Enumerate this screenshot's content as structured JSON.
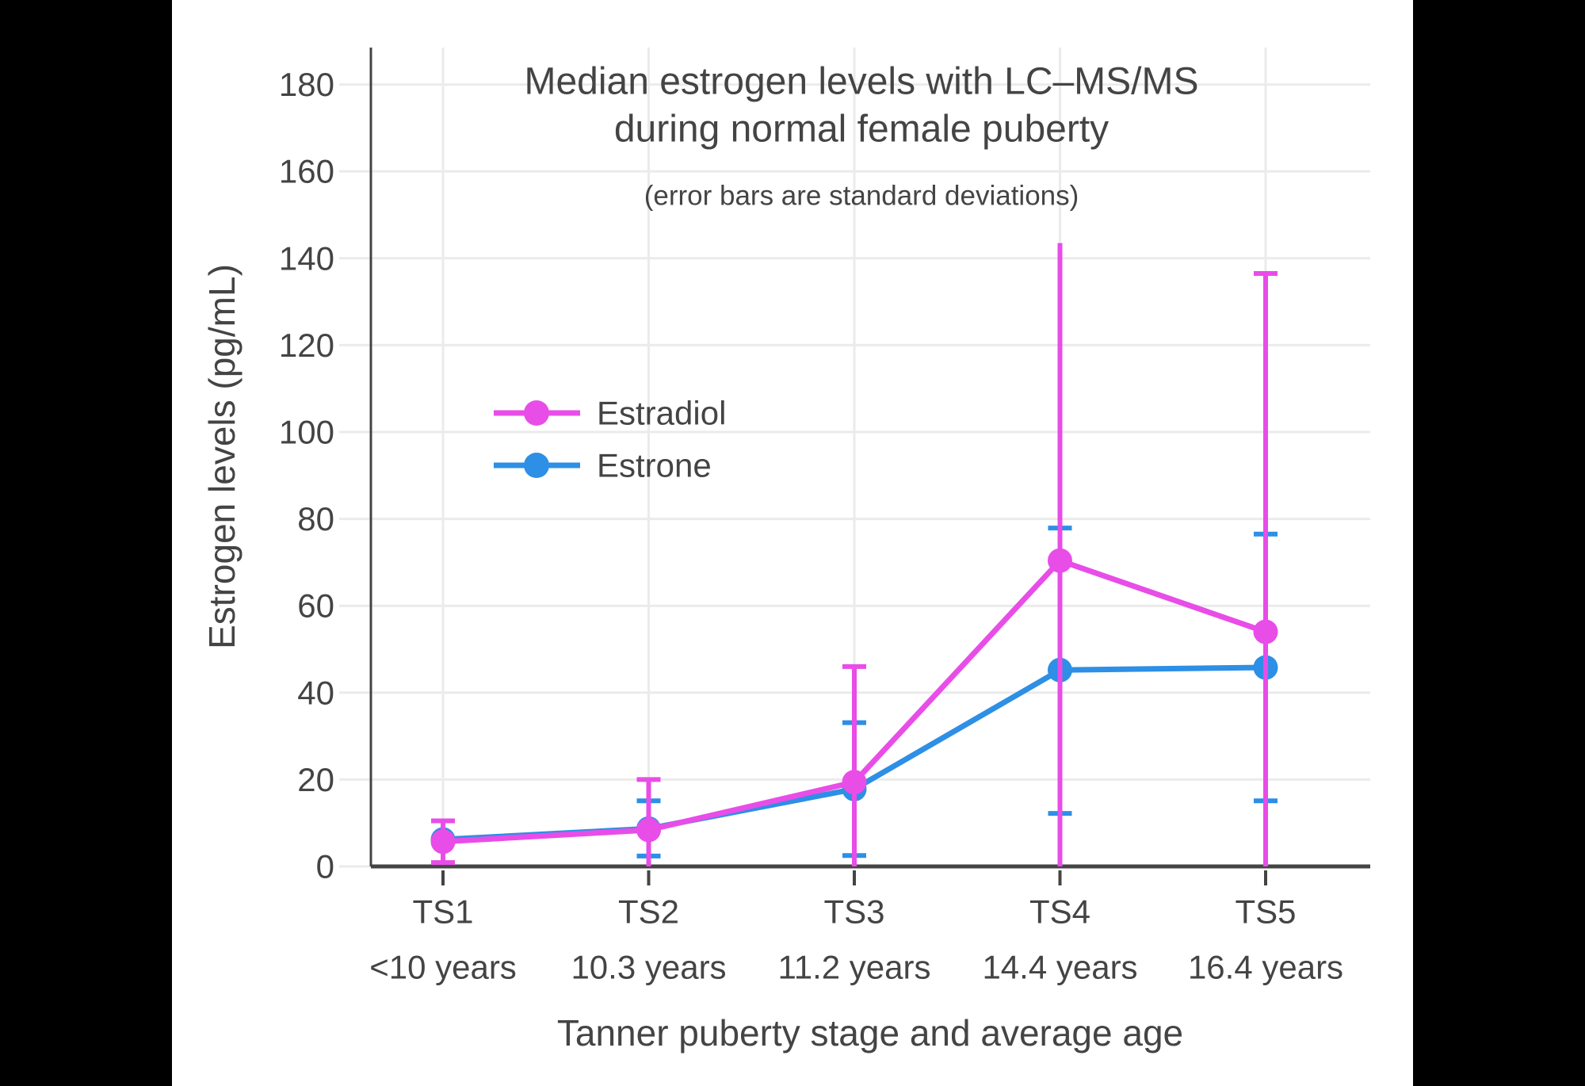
{
  "page": {
    "background": "#000000",
    "panel_background": "#ffffff",
    "text_color": "#444444",
    "grid_color": "#ebebeb",
    "axis_color": "#444444"
  },
  "chart_data": {
    "type": "line",
    "title_line1": "Median estrogen levels with LC–MS/MS",
    "title_line2": "during normal female puberty",
    "subtitle": "(error bars are standard deviations)",
    "xlabel": "Tanner puberty stage and average age",
    "ylabel": "Estrogen levels (pg/mL)",
    "categories": [
      "TS1",
      "TS2",
      "TS3",
      "TS4",
      "TS5"
    ],
    "category_ages": [
      "<10 years",
      "10.3 years",
      "11.2 years",
      "14.4 years",
      "16.4 years"
    ],
    "y_ticks": [
      0,
      20,
      40,
      60,
      80,
      100,
      120,
      140,
      160,
      180
    ],
    "ylim": [
      0,
      188.5
    ],
    "grid": true,
    "legend_position": "inside-upper-left",
    "error_bar_meaning": "standard deviations",
    "series": [
      {
        "name": "Estrone",
        "color": "#2d8fe5",
        "values": [
          6.2,
          8.7,
          17.8,
          45.2,
          45.8
        ],
        "err_hi": [
          null,
          15.1,
          33.1,
          77.9,
          76.5
        ],
        "err_lo": [
          null,
          2.4,
          2.5,
          12.2,
          15.1
        ],
        "cap_hi": [
          false,
          true,
          true,
          true,
          true
        ],
        "cap_lo": [
          false,
          true,
          true,
          true,
          true
        ]
      },
      {
        "name": "Estradiol",
        "color": "#e84de8",
        "values": [
          5.7,
          8.4,
          19.4,
          70.4,
          54.0
        ],
        "err_hi": [
          10.5,
          20.0,
          46.0,
          143.5,
          136.5
        ],
        "err_lo": [
          0.9,
          0,
          0,
          0,
          0
        ],
        "cap_hi": [
          true,
          true,
          true,
          false,
          true
        ],
        "cap_lo": [
          true,
          false,
          false,
          false,
          false
        ]
      }
    ]
  },
  "legend": {
    "items": [
      {
        "label": "Estradiol",
        "color": "#e84de8"
      },
      {
        "label": "Estrone",
        "color": "#2d8fe5"
      }
    ]
  }
}
